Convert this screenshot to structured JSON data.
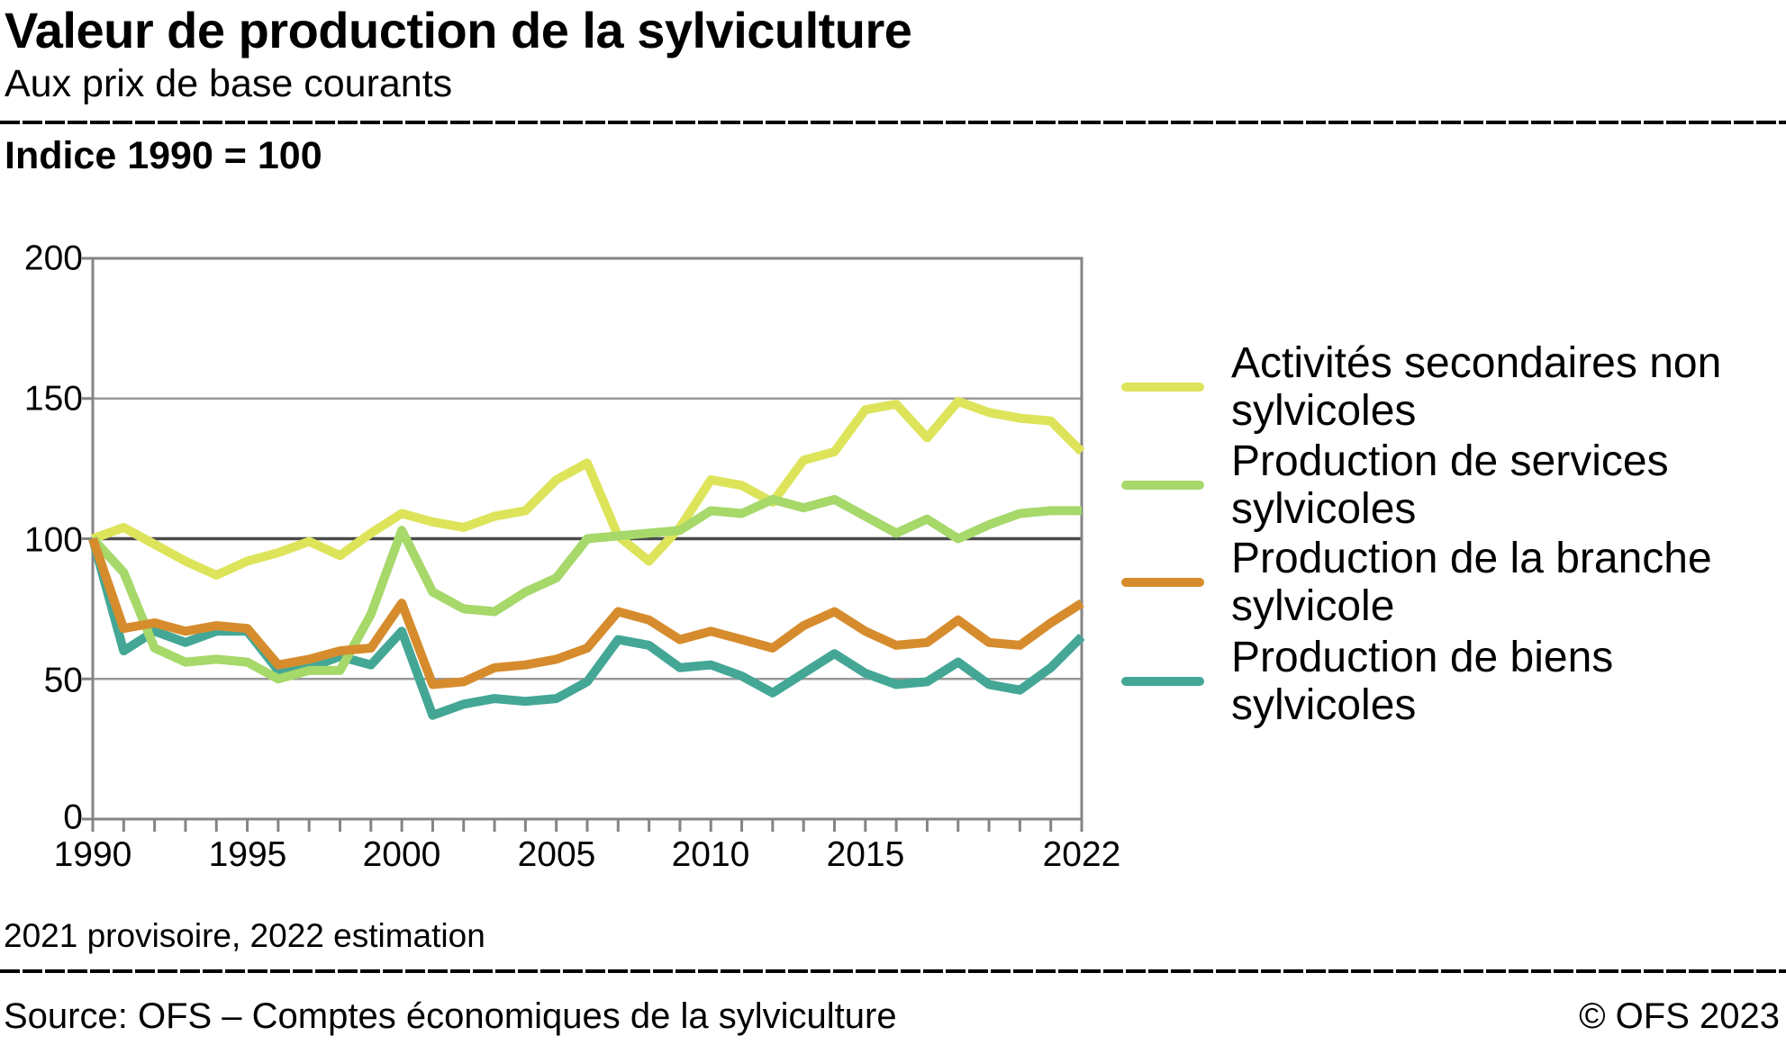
{
  "header": {
    "title": "Valeur de production de la sylviculture",
    "subtitle": "Aux prix de base courants"
  },
  "index_label": "Indice 1990 = 100",
  "legend": {
    "items": [
      {
        "label": "Activités secondaires non sylvicoles",
        "lines": [
          "Activités secondaires non",
          "sylvicoles"
        ]
      },
      {
        "label": "Production de services sylvicoles",
        "lines": [
          "Production de services",
          "sylvicoles"
        ]
      },
      {
        "label": "Production de la branche sylvicole",
        "lines": [
          "Production de la branche",
          "sylvicole"
        ]
      },
      {
        "label": "Production de biens sylvicoles",
        "lines": [
          "Production de biens",
          "sylvicoles"
        ]
      }
    ]
  },
  "footer": {
    "note": "2021 provisoire, 2022 estimation",
    "source": "Source: OFS – Comptes économiques de la sylviculture",
    "copyright": "© OFS 2023"
  },
  "chart_data": {
    "type": "line",
    "title": "Valeur de production de la sylviculture",
    "subtitle": "Aux prix de base courants",
    "index_note": "Indice 1990 = 100",
    "xlim": [
      1990,
      2022
    ],
    "ylim": [
      0,
      200
    ],
    "grid": "horizontal",
    "legend_position": "right",
    "emphasized_gridline": 100,
    "y_ticks": [
      200,
      150,
      100,
      50,
      0
    ],
    "y_tick_labels": [
      "200",
      "150",
      "100",
      "50",
      "0"
    ],
    "x_tick_years": [
      1990,
      1995,
      2000,
      2005,
      2010,
      2015,
      2022
    ],
    "x_tick_labels": [
      "1990",
      "1995",
      "2000",
      "2005",
      "2010",
      "2015",
      "2022"
    ],
    "x": [
      1990,
      1991,
      1992,
      1993,
      1994,
      1995,
      1996,
      1997,
      1998,
      1999,
      2000,
      2001,
      2002,
      2003,
      2004,
      2005,
      2006,
      2007,
      2008,
      2009,
      2010,
      2011,
      2012,
      2013,
      2014,
      2015,
      2016,
      2017,
      2018,
      2019,
      2020,
      2021,
      2022
    ],
    "series": [
      {
        "name": "Activités secondaires non sylvicoles",
        "color": "#dde45a",
        "values": [
          100,
          104,
          98,
          92,
          87,
          92,
          95,
          99,
          94,
          102,
          109,
          106,
          104,
          108,
          110,
          121,
          127,
          101,
          92,
          104,
          121,
          119,
          113,
          128,
          131,
          146,
          148,
          136,
          149,
          145,
          143,
          142,
          131
        ]
      },
      {
        "name": "Production de services sylvicoles",
        "color": "#a6d86a",
        "values": [
          100,
          88,
          61,
          56,
          57,
          56,
          50,
          53,
          53,
          73,
          103,
          81,
          75,
          74,
          81,
          86,
          100,
          101,
          102,
          103,
          110,
          109,
          114,
          111,
          114,
          108,
          102,
          107,
          100,
          105,
          109,
          110,
          110
        ]
      },
      {
        "name": "Production de la branche sylvicole",
        "color": "#d68c2d",
        "values": [
          100,
          68,
          70,
          67,
          69,
          68,
          55,
          57,
          60,
          61,
          77,
          48,
          49,
          54,
          55,
          57,
          61,
          74,
          71,
          64,
          67,
          64,
          61,
          69,
          74,
          67,
          62,
          63,
          71,
          63,
          62,
          70,
          77
        ]
      },
      {
        "name": "Production de biens sylvicoles",
        "color": "#44a796",
        "values": [
          100,
          60,
          67,
          63,
          67,
          67,
          53,
          54,
          58,
          55,
          67,
          37,
          41,
          43,
          42,
          43,
          49,
          64,
          62,
          54,
          55,
          51,
          45,
          52,
          59,
          52,
          48,
          49,
          56,
          48,
          46,
          54,
          65
        ]
      }
    ],
    "colors": {
      "grid_light": "#999999",
      "grid_dark": "#4a4a4a",
      "frame": "#848484"
    }
  }
}
